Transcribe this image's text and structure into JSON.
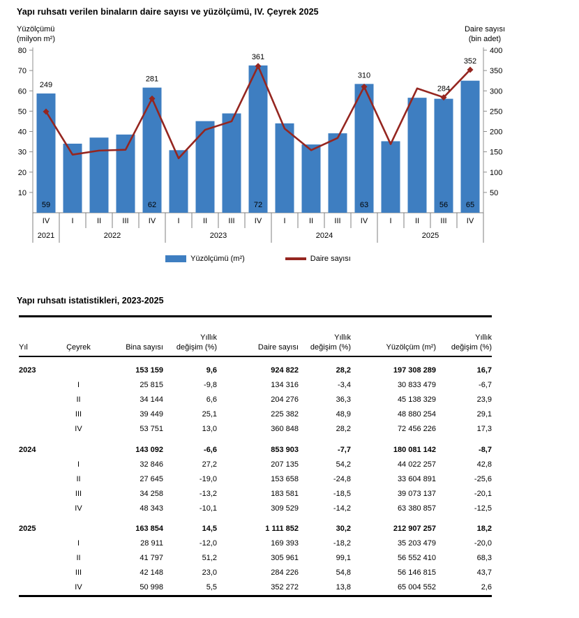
{
  "chart": {
    "title": "Yapı ruhsatı verilen binaların daire sayısı ve yüzölçümü, IV. Çeyrek 2025",
    "left_axis_label": [
      "Yüzölçümü",
      "(milyon m²)"
    ],
    "right_axis_label": [
      "Daire sayısı",
      "(bin adet)"
    ],
    "legend": [
      {
        "label": "Yüzölçümü (m²)",
        "type": "bar",
        "color": "#3E7EC1"
      },
      {
        "label": "Daire sayısı",
        "type": "line",
        "color": "#952620"
      }
    ],
    "axis_color": "#8c8c8c",
    "separator_color": "#7f7f7f"
  },
  "chart_data": {
    "type": "bar+line combo",
    "title": "Yapı ruhsatı verilen binaların daire sayısı ve yüzölçümü, IV. Çeyrek 2025",
    "x_groups": [
      {
        "year": "2021",
        "quarters": [
          "IV"
        ]
      },
      {
        "year": "2022",
        "quarters": [
          "I",
          "II",
          "III",
          "IV"
        ]
      },
      {
        "year": "2023",
        "quarters": [
          "I",
          "II",
          "III",
          "IV"
        ]
      },
      {
        "year": "2024",
        "quarters": [
          "I",
          "II",
          "III",
          "IV"
        ]
      },
      {
        "year": "2025",
        "quarters": [
          "I",
          "II",
          "III",
          "IV"
        ]
      }
    ],
    "left_axis": {
      "label": "Yüzölçümü (milyon m²)",
      "min": 0,
      "max": 80,
      "ticks": [
        10,
        20,
        30,
        40,
        50,
        60,
        70,
        80
      ]
    },
    "right_axis": {
      "label": "Daire sayısı (bin adet)",
      "min": 0,
      "max": 400,
      "ticks": [
        50,
        100,
        150,
        200,
        250,
        300,
        350,
        400
      ]
    },
    "series": [
      {
        "name": "Yüzölçümü (m²)",
        "chart": "bar",
        "axis": "left",
        "color": "#3E7EC1",
        "values": [
          58.7,
          34,
          37,
          38.5,
          61.6,
          30.8,
          45.1,
          48.9,
          72.5,
          44.0,
          33.6,
          39.1,
          63.4,
          35.2,
          56.6,
          56.1,
          65.0
        ]
      },
      {
        "name": "Daire sayısı",
        "chart": "line",
        "axis": "right",
        "color": "#952620",
        "values": [
          249,
          143,
          153,
          155,
          281,
          134,
          204,
          225,
          361,
          207,
          154,
          184,
          310,
          169,
          306,
          284,
          352
        ]
      }
    ],
    "bar_labels": {
      "0": "59",
      "4": "62",
      "8": "72",
      "12": "63",
      "15": "56",
      "16": "65"
    },
    "line_labels": {
      "0": "249",
      "4": "281",
      "8": "361",
      "12": "310",
      "15": "284",
      "16": "352"
    },
    "legend_position": "bottom-center",
    "grid": false
  },
  "table": {
    "title": "Yapı ruhsatı istatistikleri, 2023-2025",
    "columns": [
      {
        "lines": [
          "Yıl"
        ],
        "align": "left"
      },
      {
        "lines": [
          "Çeyrek"
        ],
        "align": "center"
      },
      {
        "lines": [
          "Bina sayısı"
        ],
        "align": "right"
      },
      {
        "lines": [
          "Yıllık",
          "değişim (%)"
        ],
        "align": "right"
      },
      {
        "lines": [
          "Daire sayısı"
        ],
        "align": "right"
      },
      {
        "lines": [
          "Yıllık",
          "değişim (%)"
        ],
        "align": "right"
      },
      {
        "lines": [
          "Yüzölçüm (m²)"
        ],
        "align": "right"
      },
      {
        "lines": [
          "Yıllık",
          "değişim (%)"
        ],
        "align": "right"
      }
    ],
    "rows": [
      {
        "bold": true,
        "cells": [
          "2023",
          "",
          "153 159",
          "9,6",
          "924 822",
          "28,2",
          "197 308 289",
          "16,7"
        ]
      },
      {
        "bold": false,
        "cells": [
          "",
          "I",
          "25 815",
          "-9,8",
          "134 316",
          "-3,4",
          "30 833 479",
          "-6,7"
        ]
      },
      {
        "bold": false,
        "cells": [
          "",
          "II",
          "34 144",
          "6,6",
          "204 276",
          "36,3",
          "45 138 329",
          "23,9"
        ]
      },
      {
        "bold": false,
        "cells": [
          "",
          "III",
          "39 449",
          "25,1",
          "225 382",
          "48,9",
          "48 880 254",
          "29,1"
        ]
      },
      {
        "bold": false,
        "cells": [
          "",
          "IV",
          "53 751",
          "13,0",
          "360 848",
          "28,2",
          "72 456 226",
          "17,3"
        ]
      },
      {
        "bold": true,
        "cells": [
          "2024",
          "",
          "143 092",
          "-6,6",
          "853 903",
          "-7,7",
          "180 081 142",
          "-8,7"
        ]
      },
      {
        "bold": false,
        "cells": [
          "",
          "I",
          "32 846",
          "27,2",
          "207 135",
          "54,2",
          "44 022 257",
          "42,8"
        ]
      },
      {
        "bold": false,
        "cells": [
          "",
          "II",
          "27 645",
          "-19,0",
          "153 658",
          "-24,8",
          "33 604 891",
          "-25,6"
        ]
      },
      {
        "bold": false,
        "cells": [
          "",
          "III",
          "34 258",
          "-13,2",
          "183 581",
          "-18,5",
          "39 073 137",
          "-20,1"
        ]
      },
      {
        "bold": false,
        "cells": [
          "",
          "IV",
          "48 343",
          "-10,1",
          "309 529",
          "-14,2",
          "63 380 857",
          "-12,5"
        ]
      },
      {
        "bold": true,
        "cells": [
          "2025",
          "",
          "163 854",
          "14,5",
          "1 111 852",
          "30,2",
          "212 907 257",
          "18,2"
        ]
      },
      {
        "bold": false,
        "cells": [
          "",
          "I",
          "28 911",
          "-12,0",
          "169 393",
          "-18,2",
          "35 203 479",
          "-20,0"
        ]
      },
      {
        "bold": false,
        "cells": [
          "",
          "II",
          "41 797",
          "51,2",
          "305 961",
          "99,1",
          "56 552 410",
          "68,3"
        ]
      },
      {
        "bold": false,
        "cells": [
          "",
          "III",
          "42 148",
          "23,0",
          "284 226",
          "54,8",
          "56 146 815",
          "43,7"
        ]
      },
      {
        "bold": false,
        "cells": [
          "",
          "IV",
          "50 998",
          "5,5",
          "352 272",
          "13,8",
          "65 004 552",
          "2,6"
        ]
      }
    ]
  }
}
